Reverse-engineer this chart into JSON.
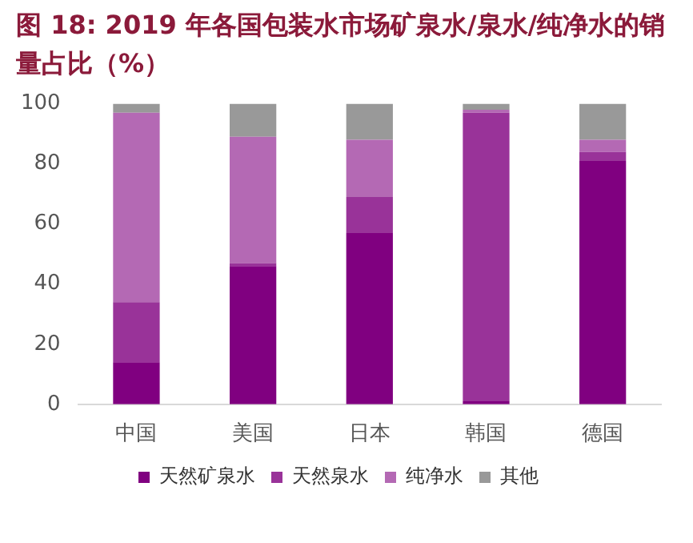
{
  "chart_data": {
    "type": "bar",
    "stacked": true,
    "title": "图 18: 2019 年各国包装水市场矿泉水/泉水/纯净水的销量占比（%）",
    "categories": [
      "中国",
      "美国",
      "日本",
      "韩国",
      "德国"
    ],
    "series": [
      {
        "name": "天然矿泉水",
        "color": "#800080",
        "values": [
          14,
          46,
          57,
          1,
          81
        ]
      },
      {
        "name": "天然泉水",
        "color": "#993399",
        "values": [
          20,
          1,
          12,
          96,
          3
        ]
      },
      {
        "name": "纯净水",
        "color": "#b469b4",
        "values": [
          63,
          42,
          19,
          1,
          4
        ]
      },
      {
        "name": "其他",
        "color": "#999999",
        "values": [
          3,
          11,
          12,
          2,
          12
        ]
      }
    ],
    "ylim": [
      0,
      100
    ],
    "yticks": [
      0,
      20,
      40,
      60,
      80,
      100
    ],
    "grid": false,
    "legend": "bottom"
  }
}
